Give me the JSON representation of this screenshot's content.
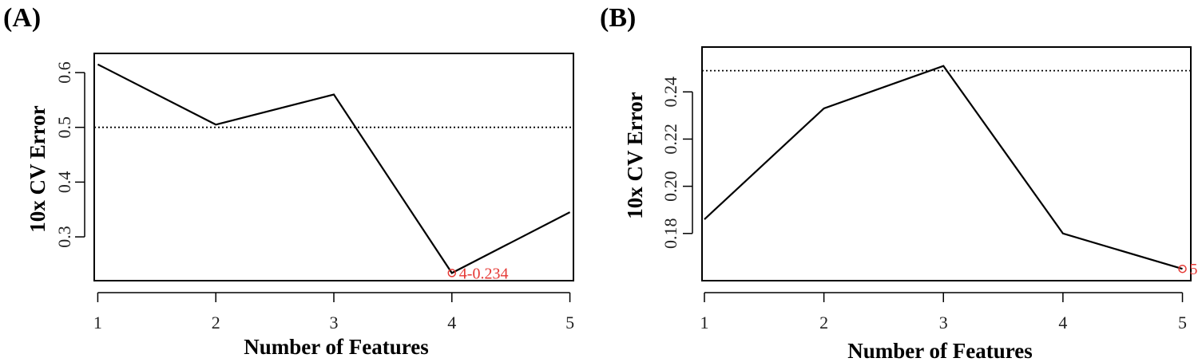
{
  "chart_data": [
    {
      "panel_label": "(A)",
      "type": "line",
      "xlabel": "Number of Features",
      "ylabel": "10x CV Error",
      "x": [
        1,
        2,
        3,
        4,
        5
      ],
      "values": [
        0.615,
        0.505,
        0.56,
        0.234,
        0.345
      ],
      "xlim": [
        0.97,
        5.03
      ],
      "ylim": [
        0.22,
        0.635
      ],
      "x_ticks": [
        "1",
        "2",
        "3",
        "4",
        "5"
      ],
      "y_ticks": [
        0.3,
        0.4,
        0.5,
        0.6
      ],
      "y_tick_labels": [
        "0.3",
        "0.4",
        "0.5",
        "0.6"
      ],
      "reference_line": 0.5,
      "min_point": {
        "x": 4,
        "y": 0.234,
        "label": "4-0.234"
      },
      "accent_color": "#e53935"
    },
    {
      "panel_label": "(B)",
      "type": "line",
      "xlabel": "Number of Features",
      "ylabel": "10x CV Error",
      "x": [
        1,
        2,
        3,
        4,
        5
      ],
      "values": [
        0.186,
        0.233,
        0.251,
        0.18,
        0.165
      ],
      "xlim": [
        0.98,
        5.07
      ],
      "ylim": [
        0.16,
        0.259
      ],
      "x_ticks": [
        "1",
        "2",
        "3",
        "4",
        "5"
      ],
      "y_ticks": [
        0.18,
        0.2,
        0.22,
        0.24
      ],
      "y_tick_labels": [
        "0.18",
        "0.20",
        "0.22",
        "0.24"
      ],
      "reference_line": 0.249,
      "min_point": {
        "x": 5,
        "y": 0.165,
        "label": "5"
      },
      "accent_color": "#e53935"
    }
  ]
}
